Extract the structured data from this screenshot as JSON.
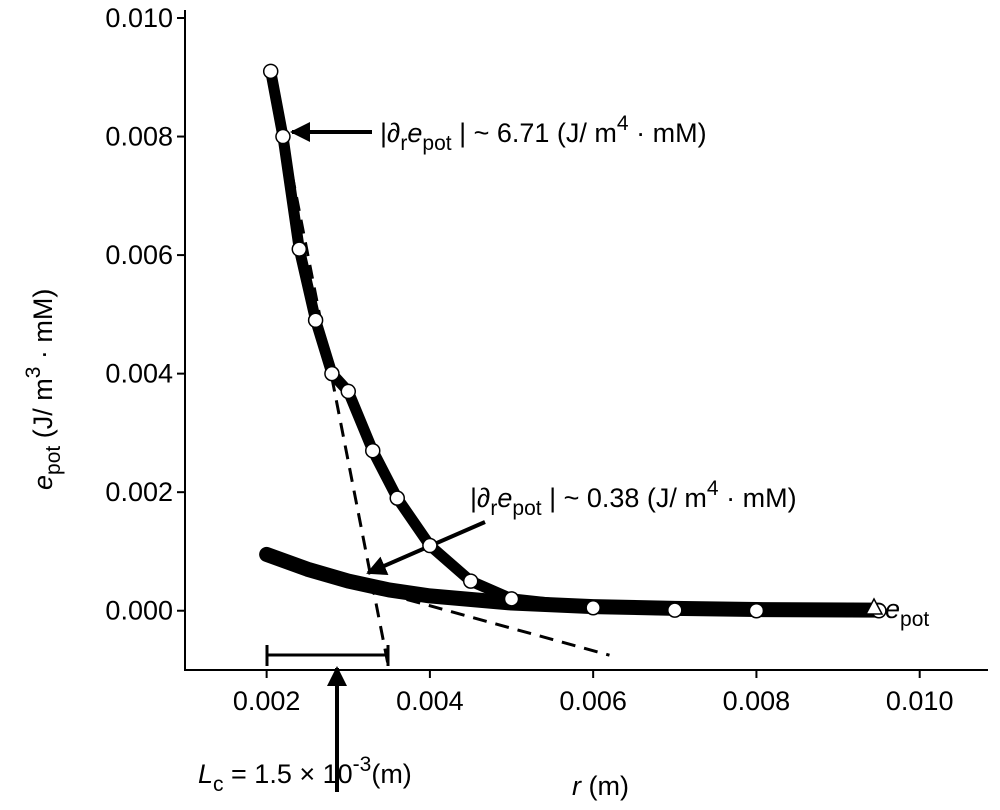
{
  "chart_data": {
    "type": "scatter",
    "xlim": [
      0.001,
      0.0108
    ],
    "ylim": [
      -0.001,
      0.01
    ],
    "xticks": [
      {
        "value": 0.002,
        "label": "0.002"
      },
      {
        "value": 0.004,
        "label": "0.004"
      },
      {
        "value": 0.006,
        "label": "0.006"
      },
      {
        "value": 0.008,
        "label": "0.008"
      },
      {
        "value": 0.01,
        "label": "0.010"
      }
    ],
    "yticks": [
      {
        "value": 0.0,
        "label": "0.000"
      },
      {
        "value": 0.002,
        "label": "0.002"
      },
      {
        "value": 0.004,
        "label": "0.004"
      },
      {
        "value": 0.006,
        "label": "0.006"
      },
      {
        "value": 0.008,
        "label": "0.008"
      },
      {
        "value": 0.01,
        "label": "0.010"
      }
    ],
    "x_label": [
      "r",
      " (m)"
    ],
    "y_label": [
      "e",
      "pot",
      " (J/ m",
      "3",
      " · mM)"
    ],
    "legend": [
      "e",
      "pot"
    ],
    "series": [
      {
        "color": "#000000",
        "x": [
          0.00205,
          0.0022,
          0.0024,
          0.0026,
          0.0028,
          0.003,
          0.0033,
          0.0036,
          0.004,
          0.0045,
          0.005,
          0.006,
          0.007,
          0.008,
          0.0095
        ],
        "values": [
          0.0091,
          0.008,
          0.0061,
          0.0049,
          0.004,
          0.0037,
          0.0027,
          0.0019,
          0.0011,
          0.0005,
          0.0002,
          5e-05,
          1e-05,
          0,
          0
        ]
      },
      {
        "color": "#000000",
        "x": [
          0.002,
          0.0025,
          0.003,
          0.0035,
          0.004,
          0.005,
          0.006,
          0.007,
          0.008,
          0.0095
        ],
        "values": [
          0.00095,
          0.0007,
          0.0005,
          0.00035,
          0.00025,
          0.00013,
          7e-05,
          4e-05,
          2e-05,
          1e-05
        ]
      }
    ],
    "tangent_lines": [
      {
        "x": [
          0.00215,
          0.0035
        ],
        "values": [
          0.0085,
          -0.001
        ]
      },
      {
        "x": [
          0.0029,
          0.0062
        ],
        "values": [
          0.0005,
          -0.00075
        ]
      }
    ],
    "annotations": [
      [
        "|∂",
        "r",
        "e",
        "pot",
        " | ~ 6.71 (J/ m",
        "4",
        " · mM)"
      ],
      [
        "|∂",
        "r",
        "e",
        "pot",
        " | ~ 0.38 (J/ m",
        "4",
        " · mM)"
      ],
      [
        "L",
        "c",
        " = 1.5 ×  10",
        "-3",
        "(m)"
      ]
    ]
  }
}
